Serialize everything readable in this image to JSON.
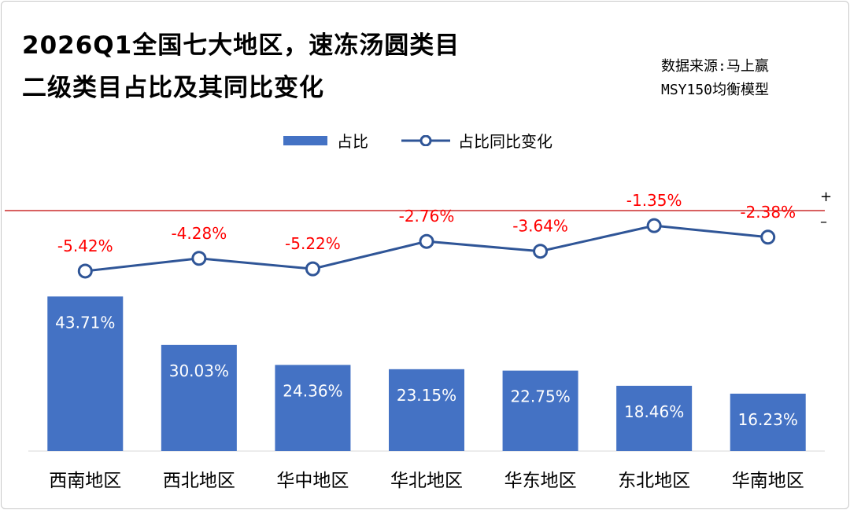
{
  "title": {
    "line1": "2026Q1全国七大地区，速冻汤圆类目",
    "line2": "二级类目占比及其同比变化"
  },
  "source": {
    "line1": "数据来源:马上赢",
    "line2": "MSY150均衡模型"
  },
  "legend": {
    "bar_label": "占比",
    "line_label": "占比同比变化"
  },
  "signs": {
    "plus": "+",
    "minus": "–"
  },
  "colors": {
    "bar": "#4472C4",
    "line": "#2F5597",
    "label_negative": "#FF0000",
    "zero_line": "#C00000"
  },
  "chart_data": {
    "type": "bar",
    "categories": [
      "西南地区",
      "西北地区",
      "华中地区",
      "华北地区",
      "华东地区",
      "东北地区",
      "华南地区"
    ],
    "series": [
      {
        "name": "占比",
        "type": "bar",
        "values": [
          43.71,
          30.03,
          24.36,
          23.15,
          22.75,
          18.46,
          16.23
        ],
        "labels": [
          "43.71%",
          "30.03%",
          "24.36%",
          "23.15%",
          "22.75%",
          "18.46%",
          "16.23%"
        ]
      },
      {
        "name": "占比同比变化",
        "type": "line",
        "values": [
          -5.42,
          -4.28,
          -5.22,
          -2.76,
          -3.64,
          -1.35,
          -2.38
        ],
        "labels": [
          "-5.42%",
          "-4.28%",
          "-5.22%",
          "-2.76%",
          "-3.64%",
          "-1.35%",
          "-2.38%"
        ]
      }
    ],
    "legend_position": "top-center",
    "grid": false
  }
}
